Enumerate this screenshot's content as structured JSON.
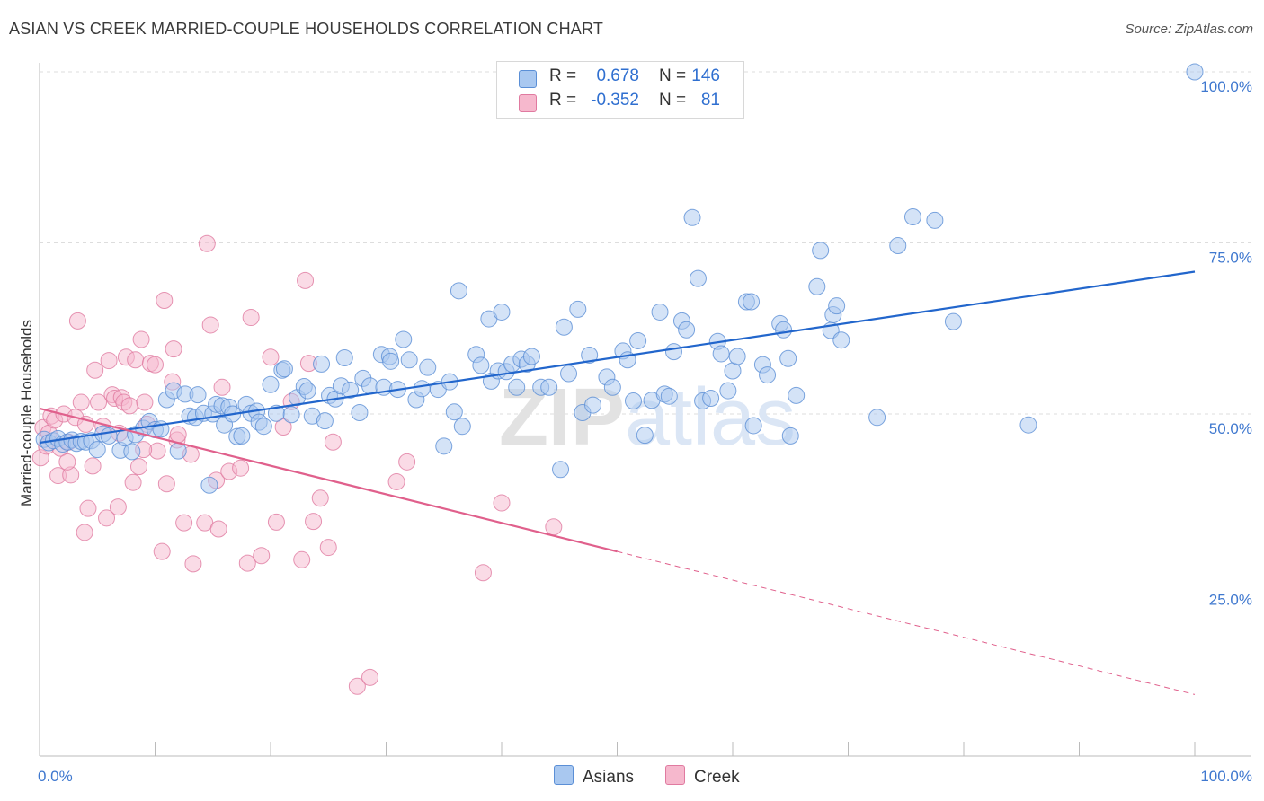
{
  "header": {
    "title": "ASIAN VS CREEK MARRIED-COUPLE HOUSEHOLDS CORRELATION CHART",
    "source": "Source: ZipAtlas.com"
  },
  "stats": [
    {
      "r_label": "R =",
      "r_value": "0.678",
      "n_label": "N =",
      "n_value": "146",
      "color": "#a9c8f0",
      "border": "#5b8fd6"
    },
    {
      "r_label": "R =",
      "r_value": "-0.352",
      "n_label": "N =",
      "n_value": "81",
      "color": "#f6b8cd",
      "border": "#e07aa0"
    }
  ],
  "legend": [
    {
      "label": "Asians",
      "color": "#a9c8f0",
      "border": "#5b8fd6"
    },
    {
      "label": "Creek",
      "color": "#f6b8cd",
      "border": "#e07aa0"
    }
  ],
  "chart_data": {
    "type": "scatter",
    "ylabel": "Married-couple Households",
    "x_tick_labels": [
      "0.0%",
      "100.0%"
    ],
    "y_tick_labels": [
      "25.0%",
      "50.0%",
      "75.0%",
      "100.0%"
    ],
    "xlim": [
      0,
      100
    ],
    "ylim": [
      0,
      100
    ],
    "grid": true,
    "watermark": "ZIPatlas",
    "series": [
      {
        "name": "Asians",
        "color": "#5b8fd6",
        "fill": "#a9c8f0",
        "trend": {
          "x": [
            0,
            100
          ],
          "y": [
            45.8,
            70.8
          ],
          "color": "#2266cc"
        },
        "points": [
          [
            0.4,
            46.3
          ],
          [
            0.8,
            45.8
          ],
          [
            1.2,
            46.1
          ],
          [
            1.6,
            46.4
          ],
          [
            2.0,
            45.6
          ],
          [
            2.4,
            45.9
          ],
          [
            2.8,
            46.2
          ],
          [
            3.2,
            45.7
          ],
          [
            3.6,
            46.0
          ],
          [
            4.0,
            45.9
          ],
          [
            4.5,
            46.1
          ],
          [
            5.0,
            44.8
          ],
          [
            5.5,
            47.1
          ],
          [
            6.0,
            46.8
          ],
          [
            7.0,
            44.7
          ],
          [
            7.4,
            46.5
          ],
          [
            8.0,
            44.5
          ],
          [
            8.3,
            47.0
          ],
          [
            9.0,
            47.9
          ],
          [
            9.5,
            48.9
          ],
          [
            10.0,
            47.7
          ],
          [
            10.5,
            47.8
          ],
          [
            11.0,
            52.1
          ],
          [
            11.6,
            53.4
          ],
          [
            12.0,
            44.6
          ],
          [
            12.6,
            52.9
          ],
          [
            13.0,
            49.7
          ],
          [
            13.5,
            49.5
          ],
          [
            13.7,
            52.8
          ],
          [
            14.2,
            50.1
          ],
          [
            14.7,
            39.6
          ],
          [
            15.0,
            50.0
          ],
          [
            15.3,
            51.4
          ],
          [
            15.8,
            51.2
          ],
          [
            16.0,
            48.4
          ],
          [
            16.4,
            51.0
          ],
          [
            16.7,
            50.0
          ],
          [
            17.1,
            46.7
          ],
          [
            17.5,
            46.8
          ],
          [
            17.9,
            51.4
          ],
          [
            18.3,
            50.1
          ],
          [
            18.8,
            50.4
          ],
          [
            19.0,
            48.8
          ],
          [
            19.4,
            48.2
          ],
          [
            20.0,
            54.3
          ],
          [
            20.5,
            50.1
          ],
          [
            21.0,
            56.4
          ],
          [
            21.2,
            56.6
          ],
          [
            21.8,
            49.9
          ],
          [
            22.3,
            52.4
          ],
          [
            22.9,
            54.0
          ],
          [
            23.2,
            53.4
          ],
          [
            23.6,
            49.7
          ],
          [
            24.4,
            57.3
          ],
          [
            24.7,
            49.0
          ],
          [
            25.1,
            52.7
          ],
          [
            25.6,
            52.2
          ],
          [
            26.1,
            54.1
          ],
          [
            26.4,
            58.2
          ],
          [
            26.9,
            53.5
          ],
          [
            27.7,
            50.2
          ],
          [
            28.0,
            55.2
          ],
          [
            28.6,
            54.1
          ],
          [
            29.6,
            58.7
          ],
          [
            29.8,
            53.9
          ],
          [
            30.3,
            58.4
          ],
          [
            30.4,
            57.7
          ],
          [
            31.0,
            53.6
          ],
          [
            31.5,
            60.9
          ],
          [
            32.0,
            57.9
          ],
          [
            32.6,
            52.1
          ],
          [
            33.1,
            53.7
          ],
          [
            33.6,
            56.8
          ],
          [
            34.5,
            53.6
          ],
          [
            35.0,
            45.3
          ],
          [
            35.5,
            54.7
          ],
          [
            35.9,
            50.3
          ],
          [
            36.3,
            68.0
          ],
          [
            36.6,
            48.2
          ],
          [
            37.8,
            58.7
          ],
          [
            38.2,
            57.1
          ],
          [
            38.9,
            63.9
          ],
          [
            39.1,
            54.8
          ],
          [
            39.7,
            56.3
          ],
          [
            40.0,
            64.9
          ],
          [
            40.4,
            56.2
          ],
          [
            40.9,
            57.3
          ],
          [
            41.3,
            53.9
          ],
          [
            41.7,
            58.0
          ],
          [
            42.2,
            57.3
          ],
          [
            42.6,
            58.4
          ],
          [
            43.4,
            53.9
          ],
          [
            44.1,
            53.9
          ],
          [
            45.1,
            41.9
          ],
          [
            45.4,
            62.7
          ],
          [
            45.8,
            55.9
          ],
          [
            46.6,
            65.3
          ],
          [
            47.0,
            50.2
          ],
          [
            47.6,
            58.6
          ],
          [
            47.9,
            51.3
          ],
          [
            49.1,
            55.4
          ],
          [
            49.6,
            53.9
          ],
          [
            50.5,
            59.2
          ],
          [
            50.9,
            57.9
          ],
          [
            51.4,
            51.9
          ],
          [
            51.8,
            60.7
          ],
          [
            52.4,
            46.9
          ],
          [
            53.0,
            52.0
          ],
          [
            53.7,
            64.9
          ],
          [
            54.1,
            52.9
          ],
          [
            54.5,
            52.6
          ],
          [
            54.9,
            59.1
          ],
          [
            55.6,
            63.6
          ],
          [
            56.0,
            62.3
          ],
          [
            56.5,
            78.7
          ],
          [
            57.0,
            69.8
          ],
          [
            57.4,
            51.9
          ],
          [
            58.1,
            52.3
          ],
          [
            58.7,
            60.6
          ],
          [
            59.0,
            58.8
          ],
          [
            59.6,
            53.4
          ],
          [
            60.0,
            56.3
          ],
          [
            60.4,
            58.4
          ],
          [
            61.2,
            66.4
          ],
          [
            61.6,
            66.4
          ],
          [
            61.8,
            48.3
          ],
          [
            62.6,
            57.2
          ],
          [
            63.0,
            55.7
          ],
          [
            64.1,
            63.2
          ],
          [
            64.4,
            62.3
          ],
          [
            64.8,
            58.1
          ],
          [
            65.0,
            46.8
          ],
          [
            65.5,
            52.7
          ],
          [
            67.3,
            68.6
          ],
          [
            67.6,
            73.9
          ],
          [
            68.5,
            62.2
          ],
          [
            68.7,
            64.5
          ],
          [
            69.0,
            65.8
          ],
          [
            69.4,
            60.8
          ],
          [
            72.5,
            49.5
          ],
          [
            74.3,
            74.6
          ],
          [
            75.6,
            78.8
          ],
          [
            77.5,
            78.3
          ],
          [
            79.1,
            63.5
          ],
          [
            85.6,
            48.4
          ],
          [
            100.0,
            100.0
          ]
        ]
      },
      {
        "name": "Creek",
        "color": "#e07aa0",
        "fill": "#f6b8cd",
        "trend": {
          "x": [
            0,
            50
          ],
          "y": [
            50.8,
            29.9
          ],
          "dash_to": {
            "x": 100,
            "y": 9.0
          },
          "color": "#e0608c"
        },
        "points": [
          [
            0.1,
            43.6
          ],
          [
            0.3,
            48.0
          ],
          [
            0.6,
            45.3
          ],
          [
            0.8,
            47.2
          ],
          [
            1.0,
            49.7
          ],
          [
            1.3,
            49.1
          ],
          [
            1.6,
            41.0
          ],
          [
            1.8,
            45.0
          ],
          [
            2.1,
            50.0
          ],
          [
            2.5,
            45.9
          ],
          [
            2.7,
            41.1
          ],
          [
            3.1,
            49.5
          ],
          [
            3.3,
            63.6
          ],
          [
            3.6,
            51.7
          ],
          [
            3.9,
            32.7
          ],
          [
            4.2,
            36.2
          ],
          [
            4.6,
            42.4
          ],
          [
            4.8,
            56.4
          ],
          [
            5.1,
            51.7
          ],
          [
            5.5,
            48.2
          ],
          [
            5.8,
            34.8
          ],
          [
            6.0,
            57.8
          ],
          [
            6.3,
            52.8
          ],
          [
            6.5,
            52.3
          ],
          [
            6.8,
            36.4
          ],
          [
            7.1,
            52.4
          ],
          [
            7.3,
            51.7
          ],
          [
            7.5,
            58.3
          ],
          [
            7.8,
            51.2
          ],
          [
            8.1,
            40.0
          ],
          [
            8.3,
            57.9
          ],
          [
            8.6,
            42.3
          ],
          [
            8.8,
            60.9
          ],
          [
            9.1,
            51.7
          ],
          [
            9.3,
            48.5
          ],
          [
            9.6,
            57.4
          ],
          [
            10.0,
            57.2
          ],
          [
            10.2,
            44.6
          ],
          [
            10.6,
            29.9
          ],
          [
            10.8,
            66.6
          ],
          [
            11.0,
            39.8
          ],
          [
            11.5,
            54.7
          ],
          [
            11.6,
            59.5
          ],
          [
            11.9,
            46.2
          ],
          [
            12.5,
            34.1
          ],
          [
            13.1,
            44.1
          ],
          [
            13.3,
            28.1
          ],
          [
            14.3,
            34.1
          ],
          [
            14.5,
            74.9
          ],
          [
            14.8,
            63.0
          ],
          [
            15.3,
            40.3
          ],
          [
            15.5,
            33.2
          ],
          [
            15.8,
            53.9
          ],
          [
            16.4,
            41.6
          ],
          [
            17.4,
            42.1
          ],
          [
            18.0,
            28.2
          ],
          [
            18.3,
            64.1
          ],
          [
            19.2,
            29.3
          ],
          [
            20.0,
            58.3
          ],
          [
            20.5,
            34.2
          ],
          [
            21.1,
            48.1
          ],
          [
            21.8,
            51.8
          ],
          [
            22.7,
            28.7
          ],
          [
            23.0,
            69.5
          ],
          [
            23.3,
            57.4
          ],
          [
            23.7,
            34.3
          ],
          [
            24.3,
            37.7
          ],
          [
            25.0,
            30.5
          ],
          [
            25.4,
            45.9
          ],
          [
            27.5,
            10.2
          ],
          [
            28.6,
            11.5
          ],
          [
            30.9,
            40.1
          ],
          [
            31.8,
            43.0
          ],
          [
            38.4,
            26.8
          ],
          [
            40.0,
            37.0
          ],
          [
            44.5,
            33.5
          ],
          [
            4.0,
            48.5
          ],
          [
            6.9,
            47.2
          ],
          [
            2.4,
            43.0
          ],
          [
            9.0,
            44.8
          ],
          [
            12.0,
            47.0
          ]
        ]
      }
    ]
  }
}
